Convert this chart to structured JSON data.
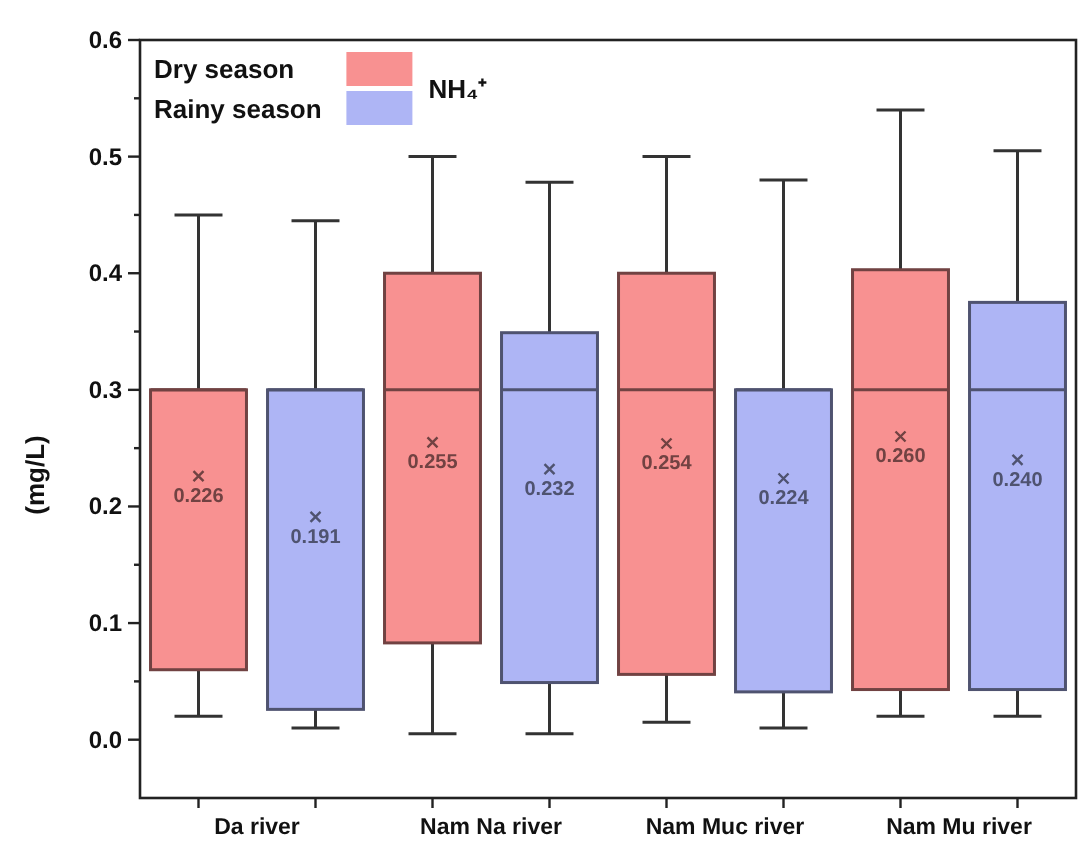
{
  "chart_data": {
    "type": "box",
    "categories": [
      "Da river",
      "Nam Na river",
      "Nam Muc river",
      "Nam Mu river"
    ],
    "ylabel": "(mg/L)",
    "legend_title": "NH₄⁺",
    "legend": "top left",
    "ylim": [
      -0.05,
      0.6
    ],
    "yticks": [
      {
        "value": 0,
        "label": "0.0"
      },
      {
        "value": 0.05,
        "label": null
      },
      0.1,
      {
        "value": 0.15,
        "label": null
      },
      0.2,
      {
        "value": 0.25,
        "label": null
      },
      0.3,
      {
        "value": 0.35,
        "label": null
      },
      0.4,
      {
        "value": 0.45,
        "label": null
      },
      0.5,
      {
        "value": 0.55,
        "label": null
      },
      0.6
    ],
    "series": [
      {
        "name": "Dry season",
        "color": "#f89191",
        "boxes": [
          {
            "low": 0.02,
            "q1": 0.06,
            "median": 0.3,
            "q3": 0.3,
            "high": 0.45,
            "mean": 0.226
          },
          {
            "low": 0.005,
            "q1": 0.083,
            "median": 0.3,
            "q3": 0.4,
            "high": 0.5,
            "mean": 0.255
          },
          {
            "low": 0.015,
            "q1": 0.056,
            "median": 0.3,
            "q3": 0.4,
            "high": 0.5,
            "mean": 0.254
          },
          {
            "low": 0.02,
            "q1": 0.043,
            "median": 0.3,
            "q3": 0.403,
            "high": 0.54,
            "mean": 0.26
          }
        ],
        "value_labels": [
          "0.226",
          "0.255",
          "0.254",
          "0.260"
        ]
      },
      {
        "name": "Rainy season",
        "color": "#aeb5f5",
        "boxes": [
          {
            "low": 0.01,
            "q1": 0.026,
            "median": 0.3,
            "q3": 0.3,
            "high": 0.445,
            "mean": 0.191
          },
          {
            "low": 0.005,
            "q1": 0.049,
            "median": 0.3,
            "q3": 0.349,
            "high": 0.478,
            "mean": 0.232
          },
          {
            "low": 0.01,
            "q1": 0.041,
            "median": 0.3,
            "q3": 0.3,
            "high": 0.48,
            "mean": 0.224
          },
          {
            "low": 0.02,
            "q1": 0.043,
            "median": 0.3,
            "q3": 0.375,
            "high": 0.505,
            "mean": 0.24
          }
        ],
        "value_labels": [
          "0.191",
          "0.232",
          "0.224",
          "0.240"
        ]
      }
    ]
  }
}
